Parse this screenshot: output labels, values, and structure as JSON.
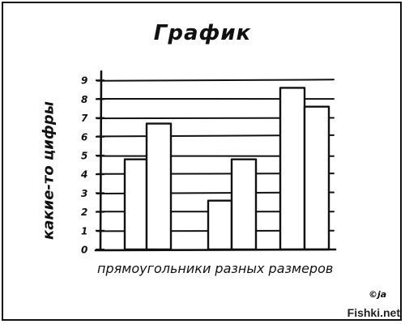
{
  "chart_data": {
    "type": "bar",
    "title": "График",
    "xlabel": "прямоугольники разных размеров",
    "ylabel": "какие-то цифры",
    "ylim": [
      0,
      9
    ],
    "yticks": [
      "0",
      "1",
      "2",
      "3",
      "4",
      "5",
      "6",
      "7",
      "8",
      "9"
    ],
    "grid": true,
    "values": [
      4.8,
      6.7,
      2.6,
      4.8,
      8.6,
      7.6
    ]
  },
  "footer": {
    "copyright": "©ja",
    "watermark": "Fishki.net"
  }
}
